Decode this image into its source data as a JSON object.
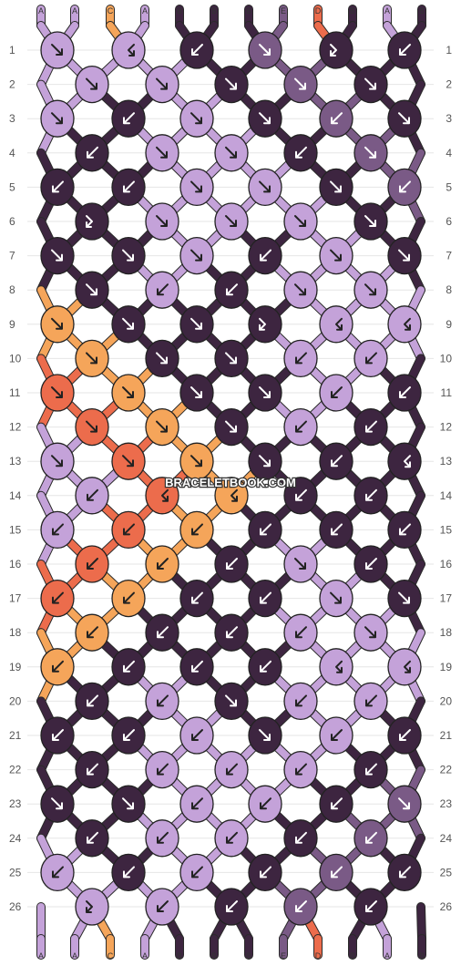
{
  "watermark": "BRACELETBOOK.COM",
  "colors": {
    "A": "#c4a2d9",
    "B": "#3d2540",
    "C": "#f5a55a",
    "D": "#ec6c4c",
    "E": "#7a5a86"
  },
  "top_threads": [
    "A",
    "A",
    "C",
    "A",
    "B",
    "B",
    "B",
    "E",
    "D",
    "B",
    "A",
    "B"
  ],
  "bottom_threads": [
    "A",
    "A",
    "C",
    "A",
    "B",
    "B",
    "B",
    "E",
    "D",
    "B",
    "A",
    "B"
  ],
  "row_labels_left": [
    "1",
    "2",
    "3",
    "4",
    "5",
    "6",
    "7",
    "8",
    "9",
    "10",
    "11",
    "12",
    "13",
    "14",
    "15",
    "16",
    "17",
    "18",
    "19",
    "20",
    "21",
    "22",
    "23",
    "24",
    "25",
    "26"
  ],
  "row_labels_right": [
    "1",
    "2",
    "3",
    "4",
    "5",
    "6",
    "7",
    "8",
    "9",
    "10",
    "11",
    "12",
    "13",
    "14",
    "15",
    "16",
    "17",
    "18",
    "19",
    "20",
    "21",
    "22",
    "23",
    "24",
    "25",
    "26"
  ],
  "knot_rows": [
    [
      {
        "c": "A",
        "k": "f"
      },
      {
        "c": "A",
        "k": "bf"
      },
      {
        "c": "B",
        "k": "b"
      },
      {
        "c": "E",
        "k": "f"
      },
      {
        "c": "B",
        "k": "fb"
      },
      {
        "c": "B",
        "k": "b"
      }
    ],
    [
      {
        "c": "A",
        "k": "f"
      },
      {
        "c": "A",
        "k": "f"
      },
      {
        "c": "B",
        "k": "f"
      },
      {
        "c": "E",
        "k": "f"
      },
      {
        "c": "B",
        "k": "f"
      }
    ],
    [
      {
        "c": "A",
        "k": "f"
      },
      {
        "c": "B",
        "k": "b"
      },
      {
        "c": "A",
        "k": "f"
      },
      {
        "c": "B",
        "k": "f"
      },
      {
        "c": "E",
        "k": "b"
      },
      {
        "c": "B",
        "k": "f"
      }
    ],
    [
      {
        "c": "B",
        "k": "b"
      },
      {
        "c": "A",
        "k": "f"
      },
      {
        "c": "A",
        "k": "f"
      },
      {
        "c": "B",
        "k": "b"
      },
      {
        "c": "E",
        "k": "f"
      }
    ],
    [
      {
        "c": "B",
        "k": "b"
      },
      {
        "c": "B",
        "k": "b"
      },
      {
        "c": "A",
        "k": "f"
      },
      {
        "c": "A",
        "k": "f"
      },
      {
        "c": "B",
        "k": "f"
      },
      {
        "c": "E",
        "k": "b"
      }
    ],
    [
      {
        "c": "B",
        "k": "fb"
      },
      {
        "c": "A",
        "k": "f"
      },
      {
        "c": "A",
        "k": "f"
      },
      {
        "c": "A",
        "k": "f"
      },
      {
        "c": "B",
        "k": "f"
      }
    ],
    [
      {
        "c": "B",
        "k": "f"
      },
      {
        "c": "B",
        "k": "f"
      },
      {
        "c": "A",
        "k": "f"
      },
      {
        "c": "B",
        "k": "b"
      },
      {
        "c": "A",
        "k": "f"
      },
      {
        "c": "B",
        "k": "f"
      }
    ],
    [
      {
        "c": "B",
        "k": "f"
      },
      {
        "c": "A",
        "k": "b"
      },
      {
        "c": "B",
        "k": "b"
      },
      {
        "c": "A",
        "k": "f"
      },
      {
        "c": "A",
        "k": "f"
      }
    ],
    [
      {
        "c": "C",
        "k": "f"
      },
      {
        "c": "B",
        "k": "f"
      },
      {
        "c": "B",
        "k": "f"
      },
      {
        "c": "B",
        "k": "fb"
      },
      {
        "c": "A",
        "k": "bf"
      },
      {
        "c": "A",
        "k": "bf"
      }
    ],
    [
      {
        "c": "C",
        "k": "f"
      },
      {
        "c": "B",
        "k": "f"
      },
      {
        "c": "B",
        "k": "f"
      },
      {
        "c": "A",
        "k": "b"
      },
      {
        "c": "A",
        "k": "b"
      }
    ],
    [
      {
        "c": "D",
        "k": "f"
      },
      {
        "c": "C",
        "k": "f"
      },
      {
        "c": "B",
        "k": "f"
      },
      {
        "c": "B",
        "k": "f"
      },
      {
        "c": "A",
        "k": "b"
      },
      {
        "c": "B",
        "k": "b"
      }
    ],
    [
      {
        "c": "D",
        "k": "f"
      },
      {
        "c": "C",
        "k": "f"
      },
      {
        "c": "B",
        "k": "f"
      },
      {
        "c": "A",
        "k": "b"
      },
      {
        "c": "B",
        "k": "b"
      }
    ],
    [
      {
        "c": "A",
        "k": "f"
      },
      {
        "c": "D",
        "k": "f"
      },
      {
        "c": "C",
        "k": "f"
      },
      {
        "c": "B",
        "k": "f"
      },
      {
        "c": "B",
        "k": "b"
      },
      {
        "c": "B",
        "k": "bf"
      }
    ],
    [
      {
        "c": "A",
        "k": "b"
      },
      {
        "c": "D",
        "k": "bf"
      },
      {
        "c": "C",
        "k": "bf"
      },
      {
        "c": "B",
        "k": "b"
      },
      {
        "c": "B",
        "k": "b"
      }
    ],
    [
      {
        "c": "A",
        "k": "b"
      },
      {
        "c": "D",
        "k": "b"
      },
      {
        "c": "C",
        "k": "b"
      },
      {
        "c": "B",
        "k": "b"
      },
      {
        "c": "B",
        "k": "b"
      },
      {
        "c": "B",
        "k": "b"
      }
    ],
    [
      {
        "c": "D",
        "k": "b"
      },
      {
        "c": "C",
        "k": "b"
      },
      {
        "c": "B",
        "k": "b"
      },
      {
        "c": "A",
        "k": "f"
      },
      {
        "c": "B",
        "k": "b"
      }
    ],
    [
      {
        "c": "D",
        "k": "b"
      },
      {
        "c": "C",
        "k": "b"
      },
      {
        "c": "B",
        "k": "b"
      },
      {
        "c": "B",
        "k": "b"
      },
      {
        "c": "A",
        "k": "f"
      },
      {
        "c": "B",
        "k": "f"
      }
    ],
    [
      {
        "c": "C",
        "k": "b"
      },
      {
        "c": "B",
        "k": "b"
      },
      {
        "c": "B",
        "k": "b"
      },
      {
        "c": "A",
        "k": "b"
      },
      {
        "c": "A",
        "k": "f"
      }
    ],
    [
      {
        "c": "C",
        "k": "b"
      },
      {
        "c": "B",
        "k": "b"
      },
      {
        "c": "B",
        "k": "b"
      },
      {
        "c": "B",
        "k": "b"
      },
      {
        "c": "A",
        "k": "bf"
      },
      {
        "c": "A",
        "k": "bf"
      }
    ],
    [
      {
        "c": "B",
        "k": "b"
      },
      {
        "c": "A",
        "k": "b"
      },
      {
        "c": "B",
        "k": "f"
      },
      {
        "c": "A",
        "k": "b"
      },
      {
        "c": "A",
        "k": "b"
      }
    ],
    [
      {
        "c": "B",
        "k": "b"
      },
      {
        "c": "B",
        "k": "b"
      },
      {
        "c": "A",
        "k": "b"
      },
      {
        "c": "B",
        "k": "f"
      },
      {
        "c": "A",
        "k": "b"
      },
      {
        "c": "B",
        "k": "b"
      }
    ],
    [
      {
        "c": "B",
        "k": "b"
      },
      {
        "c": "A",
        "k": "b"
      },
      {
        "c": "A",
        "k": "b"
      },
      {
        "c": "A",
        "k": "b"
      },
      {
        "c": "B",
        "k": "b"
      }
    ],
    [
      {
        "c": "B",
        "k": "f"
      },
      {
        "c": "B",
        "k": "f"
      },
      {
        "c": "A",
        "k": "b"
      },
      {
        "c": "A",
        "k": "b"
      },
      {
        "c": "B",
        "k": "b"
      },
      {
        "c": "E",
        "k": "f"
      }
    ],
    [
      {
        "c": "B",
        "k": "b"
      },
      {
        "c": "A",
        "k": "b"
      },
      {
        "c": "A",
        "k": "b"
      },
      {
        "c": "B",
        "k": "b"
      },
      {
        "c": "E",
        "k": "b"
      }
    ],
    [
      {
        "c": "A",
        "k": "b"
      },
      {
        "c": "B",
        "k": "b"
      },
      {
        "c": "A",
        "k": "b"
      },
      {
        "c": "B",
        "k": "b"
      },
      {
        "c": "E",
        "k": "b"
      },
      {
        "c": "B",
        "k": "b"
      }
    ],
    [
      {
        "c": "A",
        "k": "fb"
      },
      {
        "c": "A",
        "k": "b"
      },
      {
        "c": "B",
        "k": "b"
      },
      {
        "c": "E",
        "k": "b"
      },
      {
        "c": "B",
        "k": "b"
      }
    ]
  ]
}
